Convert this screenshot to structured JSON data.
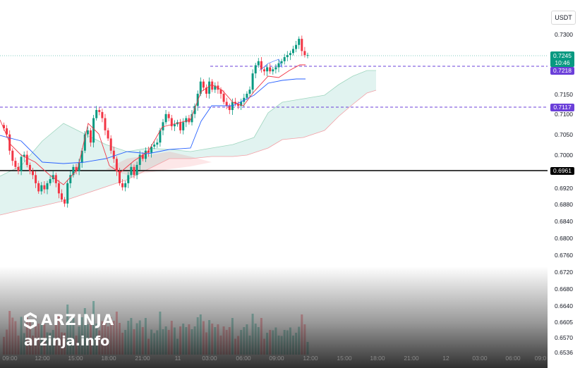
{
  "chart_data": {
    "type": "candlestick",
    "currency": "USDT",
    "price_ticks": [
      "0.7300",
      "0.7150",
      "0.7100",
      "0.7050",
      "0.7000",
      "0.6920",
      "0.6880",
      "0.6840",
      "0.6800",
      "0.6760",
      "0.6720",
      "0.6680",
      "0.6640",
      "0.6605",
      "0.6570",
      "0.6536"
    ],
    "time_ticks": [
      "09:00",
      "12:00",
      "15:00",
      "18:00",
      "21:00",
      "11",
      "03:00",
      "06:00",
      "09:00",
      "12:00",
      "15:00",
      "18:00",
      "21:00",
      "12",
      "03:00",
      "06:00",
      "09:0"
    ],
    "last_price": "0.7245",
    "countdown": "10:46",
    "horizontal_lines": [
      {
        "label": "0.7218",
        "value": 0.7218,
        "style": "dashed",
        "color": "#6b3fd9"
      },
      {
        "label": "0.7117",
        "value": 0.7117,
        "style": "dashed",
        "color": "#6b3fd9"
      },
      {
        "label": "0.6961",
        "value": 0.6961,
        "style": "solid",
        "color": "#000000"
      }
    ],
    "candles_close": [
      0.7065,
      0.705,
      0.701,
      0.6985,
      0.697,
      0.696,
      0.6995,
      0.7,
      0.6975,
      0.696,
      0.695,
      0.693,
      0.691,
      0.6925,
      0.6915,
      0.693,
      0.694,
      0.695,
      0.693,
      0.6905,
      0.689,
      0.688,
      0.693,
      0.695,
      0.697,
      0.696,
      0.698,
      0.701,
      0.705,
      0.706,
      0.703,
      0.709,
      0.711,
      0.7105,
      0.709,
      0.706,
      0.704,
      0.701,
      0.699,
      0.696,
      0.693,
      0.692,
      0.693,
      0.695,
      0.697,
      0.695,
      0.6975,
      0.7,
      0.699,
      0.701,
      0.7005,
      0.702,
      0.7025,
      0.703,
      0.706,
      0.708,
      0.71,
      0.709,
      0.707,
      0.7075,
      0.708,
      0.706,
      0.708,
      0.709,
      0.708,
      0.71,
      0.712,
      0.715,
      0.718,
      0.7165,
      0.715,
      0.718,
      0.716,
      0.717,
      0.716,
      0.715,
      0.713,
      0.712,
      0.711,
      0.713,
      0.7125,
      0.712,
      0.713,
      0.714,
      0.715,
      0.716,
      0.72,
      0.722,
      0.723,
      0.721,
      0.7205,
      0.7215,
      0.7205,
      0.721,
      0.7215,
      0.7225,
      0.723,
      0.724,
      0.7245,
      0.725,
      0.726,
      0.727,
      0.7285,
      0.7255,
      0.7245,
      0.7245
    ]
  },
  "branding": {
    "name": "ARZINJA",
    "site": "arzinja.info"
  }
}
